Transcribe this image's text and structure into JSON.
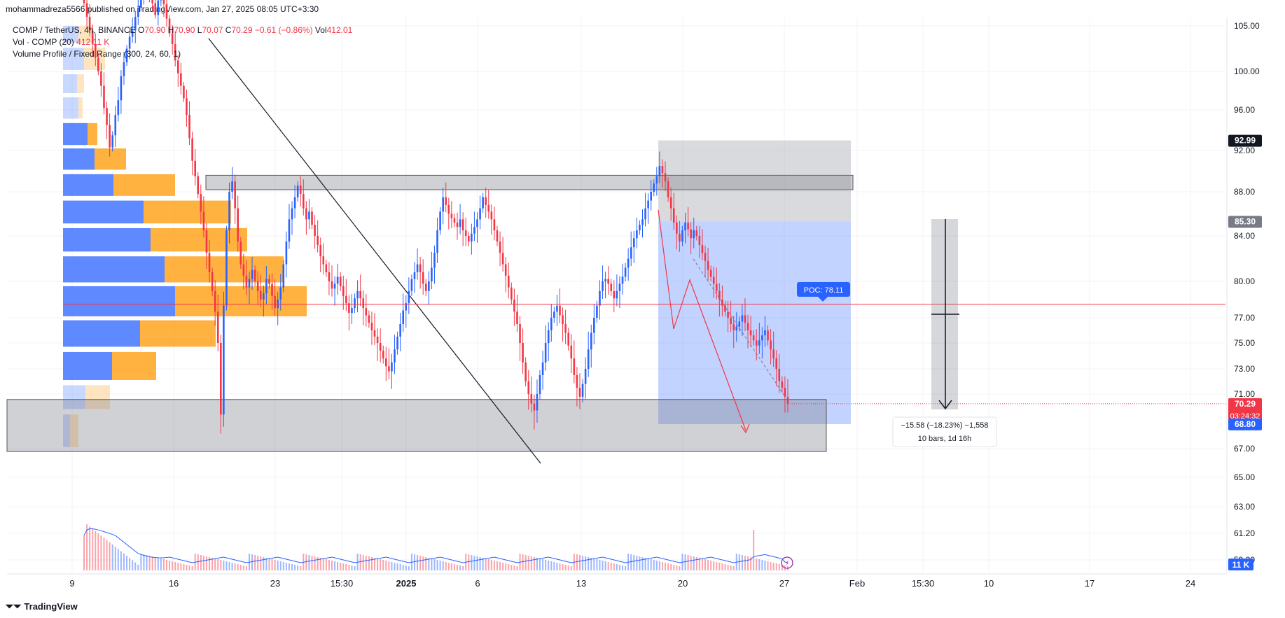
{
  "header": {
    "published": "mohammadreza5566 published on TradingView.com, Jan 27, 2025 08:05 UTC+3:30"
  },
  "legend": {
    "symbol": "COMP / TetherUS, 4h, BINANCE",
    "o_label": "O",
    "o_value": "70.90",
    "h_label": "H",
    "h_value": "70.90",
    "l_label": "L",
    "l_value": "70.07",
    "c_label": "C",
    "c_value": "70.29",
    "change": "−0.61 (−0.86%)",
    "vol_label": "Vol",
    "vol_value": "412.01",
    "volume_indicator": "Vol · COMP (20)",
    "volume_values": "412  11 K",
    "volume_profile": "Volume Profile / Fixed Range (300, 24, 60, 1)"
  },
  "footer": {
    "brand": "TradingView"
  },
  "colors": {
    "up": "#2962ff",
    "down": "#f23645",
    "grid": "#f0f3fa",
    "vp_blue": "#2962ff",
    "vp_orange": "#ff9800",
    "target_zone": "#2962ff",
    "stop_zone": "#787b86"
  },
  "chart_data": {
    "type": "candlestick",
    "price_axis": {
      "ticks": [
        "105.00",
        "100.00",
        "96.00",
        "92.00",
        "88.00",
        "84.00",
        "80.00",
        "77.00",
        "75.00",
        "73.00",
        "71.00",
        "67.00",
        "65.00",
        "63.00",
        "61.20",
        "59.20"
      ]
    },
    "time_axis": {
      "ticks": [
        "9",
        "16",
        "23",
        "15:30",
        "2025",
        "6",
        "13",
        "20",
        "27",
        "Feb",
        "15:30",
        "10",
        "17",
        "24"
      ]
    },
    "price_labels": [
      {
        "value": "92.99",
        "price": 92.99,
        "style": "dark"
      },
      {
        "value": "85.30",
        "price": 85.3,
        "style": "gray"
      },
      {
        "value": "70.29",
        "price": 70.29,
        "style": "red",
        "extra": "03:24:32"
      },
      {
        "value": "68.80",
        "price": 68.8,
        "style": "blue"
      }
    ],
    "volume_last_label": "11 K",
    "poc": {
      "label": "POC: 78.11",
      "price": 78.11
    },
    "measure": {
      "line1": "−15.58 (−18.23%) −1,558",
      "line2": "10 bars, 1d 16h"
    },
    "zones": {
      "resistance": {
        "top": 89.6,
        "bottom": 88.2
      },
      "support": {
        "top": 70.6,
        "bottom": 66.8
      },
      "position_stop": {
        "top": 92.99,
        "bottom": 85.3
      },
      "position_target": {
        "top": 85.3,
        "bottom": 68.8
      }
    },
    "series_close": [
      107.5,
      106.0,
      104.5,
      103.0,
      101.5,
      100.0,
      98.5,
      96.2,
      94.5,
      92.3,
      93.5,
      95.5,
      97.0,
      99.5,
      101.0,
      102.5,
      103.8,
      104.5,
      106.0,
      107.0,
      108.5,
      109.5,
      110.0,
      109.0,
      107.5,
      106.2,
      107.8,
      108.6,
      107.4,
      105.8,
      104.2,
      103.0,
      101.2,
      99.8,
      98.5,
      97.2,
      95.5,
      93.2,
      91.0,
      89.5,
      87.8,
      86.2,
      84.5,
      82.5,
      80.8,
      79.2,
      77.5,
      75.0,
      69.5,
      78.0,
      84.5,
      88.0,
      89.0,
      86.5,
      83.5,
      81.5,
      80.5,
      79.5,
      80.2,
      81.0,
      80.0,
      79.2,
      78.5,
      79.0,
      80.2,
      79.8,
      78.8,
      77.8,
      78.5,
      79.5,
      81.5,
      83.5,
      85.5,
      86.5,
      87.5,
      88.6,
      87.8,
      86.5,
      85.5,
      86.2,
      85.0,
      84.0,
      83.2,
      82.2,
      81.5,
      80.8,
      80.0,
      79.4,
      79.8,
      80.4,
      79.6,
      78.8,
      78.2,
      77.4,
      77.8,
      78.6,
      79.2,
      78.6,
      77.8,
      77.2,
      76.6,
      76.0,
      75.5,
      75.0,
      74.4,
      73.8,
      73.2,
      72.8,
      73.5,
      74.5,
      75.5,
      76.5,
      77.6,
      78.2,
      79.2,
      80.2,
      80.8,
      81.5,
      80.8,
      79.8,
      79.2,
      80.0,
      81.2,
      82.5,
      84.5,
      86.2,
      87.5,
      86.8,
      86.0,
      85.6,
      85.2,
      84.8,
      85.5,
      84.5,
      84.0,
      83.5,
      84.2,
      84.8,
      85.5,
      86.5,
      87.5,
      86.8,
      86.2,
      85.5,
      84.5,
      83.5,
      82.5,
      81.5,
      80.5,
      79.5,
      78.5,
      77.5,
      76.5,
      75.0,
      73.5,
      72.0,
      71.0,
      70.3,
      69.8,
      71.0,
      72.5,
      73.5,
      75.0,
      76.0,
      77.0,
      77.5,
      78.0,
      77.2,
      76.5,
      75.8,
      74.8,
      73.8,
      72.5,
      71.5,
      70.8,
      71.8,
      73.0,
      74.5,
      75.8,
      77.0,
      78.0,
      79.2,
      80.0,
      80.2,
      79.8,
      79.2,
      78.6,
      79.2,
      79.8,
      80.4,
      81.2,
      82.0,
      83.0,
      83.8,
      84.5,
      85.0,
      85.5,
      86.5,
      87.2,
      88.0,
      88.8,
      89.5,
      90.5,
      89.8,
      89.0,
      87.5,
      86.5,
      85.2,
      84.2,
      83.5,
      84.5,
      85.2,
      84.6,
      83.8,
      84.5,
      84.0,
      83.2,
      82.5,
      81.8,
      81.0,
      80.4,
      79.8,
      79.2,
      78.5,
      78.0,
      77.5,
      77.0,
      76.5,
      76.0,
      76.3,
      76.7,
      77.2,
      76.6,
      76.0,
      75.6,
      75.2,
      74.8,
      75.2,
      75.6,
      76.0,
      75.2,
      74.5,
      73.8,
      73.0,
      72.0,
      71.5,
      70.8,
      70.29
    ],
    "volume_profile_rows": [
      {
        "price_low": 103.0,
        "price_high": 105.0,
        "blue": 22,
        "orange": 20
      },
      {
        "price_low": 100.0,
        "price_high": 102.6,
        "blue": 30,
        "orange": 30
      },
      {
        "price_low": 97.6,
        "price_high": 99.7,
        "blue": 20,
        "orange": 10
      },
      {
        "price_low": 95.0,
        "price_high": 97.3,
        "blue": 22,
        "orange": 6
      },
      {
        "price_low": 92.4,
        "price_high": 94.7,
        "blue": 35,
        "orange": 14
      },
      {
        "price_low": 90.0,
        "price_high": 92.2,
        "blue": 45,
        "orange": 45
      },
      {
        "price_low": 87.5,
        "price_high": 89.7,
        "blue": 72,
        "orange": 88
      },
      {
        "price_low": 85.0,
        "price_high": 87.2,
        "blue": 115,
        "orange": 125
      },
      {
        "price_low": 82.5,
        "price_high": 84.7,
        "blue": 125,
        "orange": 138
      },
      {
        "price_low": 79.8,
        "price_high": 82.2,
        "blue": 145,
        "orange": 170
      },
      {
        "price_low": 77.0,
        "price_high": 79.6,
        "blue": 160,
        "orange": 188
      },
      {
        "price_low": 74.6,
        "price_high": 76.8,
        "blue": 110,
        "orange": 108
      },
      {
        "price_low": 72.0,
        "price_high": 74.3,
        "blue": 70,
        "orange": 63
      },
      {
        "price_low": 69.8,
        "price_high": 71.7,
        "blue": 32,
        "orange": 35
      },
      {
        "price_low": 67.0,
        "price_high": 69.5,
        "blue": 10,
        "orange": 12
      }
    ]
  }
}
